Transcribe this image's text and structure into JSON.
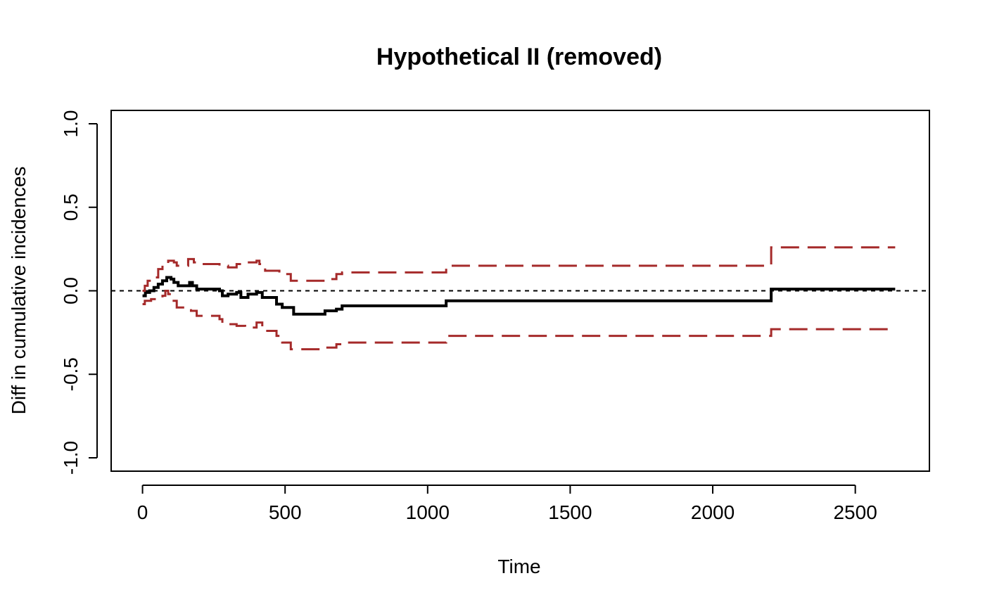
{
  "chart_data": {
    "type": "line",
    "title": "Hypothetical II (removed)",
    "xlabel": "Time",
    "ylabel": "Diff in cumulative incidences",
    "xlim": [
      -110,
      2760
    ],
    "ylim": [
      -1.08,
      1.08
    ],
    "x_ticks": [
      0,
      500,
      1000,
      1500,
      2000,
      2500
    ],
    "y_ticks": [
      -1.0,
      -0.5,
      0.0,
      0.5,
      1.0
    ],
    "x_tick_labels": [
      "0",
      "500",
      "1000",
      "1500",
      "2000",
      "2500"
    ],
    "y_tick_labels": [
      "-1.0",
      "-0.5",
      "0.0",
      "0.5",
      "1.0"
    ],
    "grid": false,
    "reference_line": {
      "y": 0.0,
      "style": "dotted",
      "color": "#000000"
    },
    "series": [
      {
        "role": "estimate",
        "color": "#000000",
        "style": "solid",
        "points": [
          [
            0,
            -0.03
          ],
          [
            10,
            -0.01
          ],
          [
            25,
            0.0
          ],
          [
            40,
            0.02
          ],
          [
            55,
            0.04
          ],
          [
            70,
            0.06
          ],
          [
            85,
            0.08
          ],
          [
            100,
            0.07
          ],
          [
            110,
            0.05
          ],
          [
            125,
            0.03
          ],
          [
            150,
            0.03
          ],
          [
            165,
            0.05
          ],
          [
            175,
            0.03
          ],
          [
            190,
            0.01
          ],
          [
            270,
            0.0
          ],
          [
            280,
            -0.03
          ],
          [
            300,
            -0.02
          ],
          [
            330,
            -0.01
          ],
          [
            345,
            -0.04
          ],
          [
            370,
            -0.02
          ],
          [
            400,
            -0.01
          ],
          [
            420,
            -0.04
          ],
          [
            470,
            -0.08
          ],
          [
            490,
            -0.1
          ],
          [
            530,
            -0.14
          ],
          [
            640,
            -0.12
          ],
          [
            680,
            -0.11
          ],
          [
            700,
            -0.09
          ],
          [
            1065,
            -0.06
          ],
          [
            2205,
            0.01
          ],
          [
            2640,
            0.01
          ]
        ]
      },
      {
        "role": "upper-confidence-band",
        "color": "#a52a2a",
        "style": "dashed",
        "points": [
          [
            0,
            0.0
          ],
          [
            8,
            0.03
          ],
          [
            18,
            0.06
          ],
          [
            35,
            0.08
          ],
          [
            55,
            0.13
          ],
          [
            70,
            0.16
          ],
          [
            90,
            0.18
          ],
          [
            110,
            0.17
          ],
          [
            120,
            0.15
          ],
          [
            160,
            0.19
          ],
          [
            180,
            0.17
          ],
          [
            200,
            0.16
          ],
          [
            270,
            0.15
          ],
          [
            300,
            0.14
          ],
          [
            330,
            0.16
          ],
          [
            365,
            0.17
          ],
          [
            400,
            0.18
          ],
          [
            410,
            0.16
          ],
          [
            430,
            0.12
          ],
          [
            480,
            0.1
          ],
          [
            520,
            0.06
          ],
          [
            640,
            0.07
          ],
          [
            680,
            0.1
          ],
          [
            700,
            0.11
          ],
          [
            1065,
            0.15
          ],
          [
            2205,
            0.26
          ],
          [
            2640,
            0.26
          ]
        ]
      },
      {
        "role": "lower-confidence-band",
        "color": "#a52a2a",
        "style": "dashed",
        "points": [
          [
            0,
            -0.08
          ],
          [
            8,
            -0.06
          ],
          [
            30,
            -0.05
          ],
          [
            55,
            -0.04
          ],
          [
            70,
            -0.03
          ],
          [
            80,
            0.0
          ],
          [
            90,
            -0.02
          ],
          [
            100,
            -0.06
          ],
          [
            120,
            -0.1
          ],
          [
            170,
            -0.12
          ],
          [
            190,
            -0.15
          ],
          [
            270,
            -0.17
          ],
          [
            280,
            -0.2
          ],
          [
            330,
            -0.21
          ],
          [
            360,
            -0.22
          ],
          [
            400,
            -0.19
          ],
          [
            420,
            -0.24
          ],
          [
            470,
            -0.27
          ],
          [
            490,
            -0.31
          ],
          [
            520,
            -0.35
          ],
          [
            640,
            -0.34
          ],
          [
            680,
            -0.32
          ],
          [
            700,
            -0.31
          ],
          [
            1065,
            -0.27
          ],
          [
            2205,
            -0.23
          ],
          [
            2640,
            -0.23
          ]
        ]
      }
    ]
  }
}
